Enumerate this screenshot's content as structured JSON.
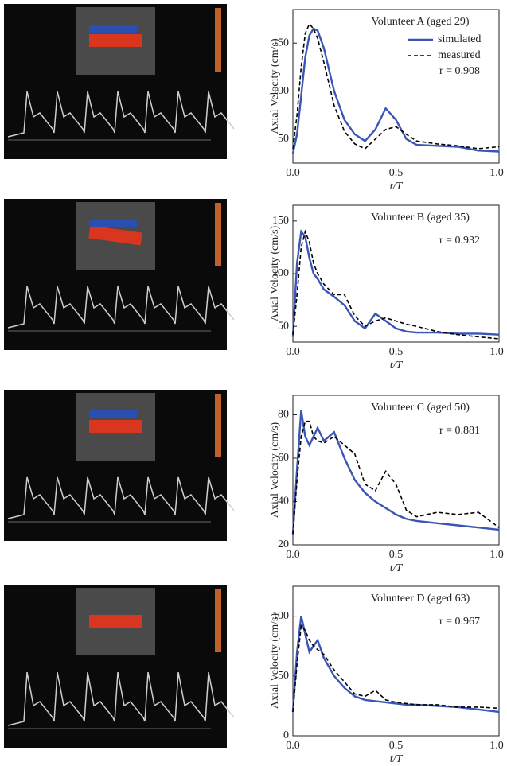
{
  "chart_data": [
    {
      "type": "line",
      "title": "Volunteer A (aged 29)",
      "xlabel": "t/T",
      "ylabel": "Axial Velocity (cm/s)",
      "annotations": [
        "r = 0.908"
      ],
      "legend": true,
      "legend_position": "upper right",
      "grid": false,
      "x": [
        0,
        0.02,
        0.04,
        0.06,
        0.08,
        0.1,
        0.12,
        0.15,
        0.2,
        0.25,
        0.3,
        0.35,
        0.4,
        0.45,
        0.5,
        0.55,
        0.6,
        0.7,
        0.8,
        0.9,
        1.0
      ],
      "xlim": [
        0,
        1
      ],
      "xticks": [
        {
          "value": 0,
          "label": "0.0"
        },
        0.5,
        {
          "value": 1,
          "label": "1.0"
        }
      ],
      "ylim": [
        25,
        185
      ],
      "yticks": [
        50,
        100,
        150
      ],
      "series": [
        {
          "name": "simulated",
          "color": "#3a55b4",
          "style": "solid",
          "values": [
            35,
            55,
            95,
            135,
            158,
            165,
            163,
            145,
            100,
            70,
            55,
            48,
            60,
            82,
            70,
            50,
            44,
            43,
            42,
            38,
            37
          ]
        },
        {
          "name": "measured",
          "color": "#000000",
          "style": "dashed",
          "values": [
            40,
            75,
            125,
            160,
            170,
            165,
            155,
            130,
            85,
            58,
            45,
            40,
            50,
            60,
            63,
            55,
            48,
            45,
            43,
            40,
            42
          ]
        }
      ]
    },
    {
      "type": "line",
      "title": "Volunteer B (aged 35)",
      "xlabel": "t/T",
      "ylabel": "Axial Velocity (cm/s)",
      "annotations": [
        "r = 0.932"
      ],
      "legend": false,
      "grid": false,
      "x": [
        0,
        0.02,
        0.04,
        0.06,
        0.08,
        0.1,
        0.12,
        0.15,
        0.2,
        0.25,
        0.3,
        0.35,
        0.4,
        0.45,
        0.5,
        0.55,
        0.6,
        0.7,
        0.8,
        0.9,
        1.0
      ],
      "xlim": [
        0,
        1
      ],
      "xticks": [
        {
          "value": 0,
          "label": "0.0"
        },
        0.5,
        {
          "value": 1,
          "label": "1.0"
        }
      ],
      "ylim": [
        35,
        165
      ],
      "yticks": [
        50,
        100,
        150
      ],
      "series": [
        {
          "color": "#3a55b4",
          "style": "solid",
          "values": [
            40,
            110,
            140,
            135,
            115,
            100,
            95,
            85,
            78,
            70,
            55,
            48,
            62,
            55,
            48,
            45,
            44,
            44,
            43,
            43,
            42
          ]
        },
        {
          "color": "#000000",
          "style": "dashed",
          "values": [
            42,
            80,
            125,
            140,
            130,
            110,
            100,
            90,
            80,
            80,
            60,
            50,
            55,
            58,
            55,
            52,
            50,
            45,
            42,
            40,
            38
          ]
        }
      ]
    },
    {
      "type": "line",
      "title": "Volunteer C (aged 50)",
      "xlabel": "t/T",
      "ylabel": "Axial Velocity (cm/s)",
      "annotations": [
        "r = 0.881"
      ],
      "legend": false,
      "grid": false,
      "x": [
        0,
        0.02,
        0.04,
        0.06,
        0.08,
        0.1,
        0.12,
        0.15,
        0.2,
        0.25,
        0.3,
        0.35,
        0.4,
        0.45,
        0.5,
        0.55,
        0.6,
        0.7,
        0.8,
        0.9,
        1.0
      ],
      "xlim": [
        0,
        1
      ],
      "xticks": [
        {
          "value": 0,
          "label": "0.0"
        },
        0.5,
        {
          "value": 1,
          "label": "1.0"
        }
      ],
      "ylim": [
        20,
        89
      ],
      "yticks": [
        20,
        40,
        60,
        80
      ],
      "series": [
        {
          "color": "#3a55b4",
          "style": "solid",
          "values": [
            25,
            55,
            82,
            70,
            66,
            70,
            74,
            68,
            72,
            60,
            50,
            44,
            40,
            37,
            34,
            32,
            31,
            30,
            29,
            28,
            27
          ]
        },
        {
          "color": "#000000",
          "style": "dashed",
          "values": [
            25,
            50,
            70,
            77,
            77,
            70,
            68,
            67,
            70,
            66,
            62,
            48,
            45,
            54,
            48,
            36,
            33,
            35,
            34,
            35,
            28
          ]
        }
      ]
    },
    {
      "type": "line",
      "title": "Volunteer D (aged 63)",
      "xlabel": "t/T",
      "ylabel": "Axial Velocity (cm/s)",
      "annotations": [
        "r = 0.967"
      ],
      "legend": false,
      "grid": false,
      "x": [
        0,
        0.02,
        0.04,
        0.06,
        0.08,
        0.1,
        0.12,
        0.15,
        0.2,
        0.25,
        0.3,
        0.35,
        0.4,
        0.45,
        0.5,
        0.55,
        0.6,
        0.7,
        0.8,
        0.9,
        1.0
      ],
      "xlim": [
        0,
        1
      ],
      "xticks": [
        {
          "value": 0,
          "label": "0.0"
        },
        0.5,
        {
          "value": 1,
          "label": "1.0"
        }
      ],
      "ylim": [
        0,
        125
      ],
      "yticks": [
        0,
        50,
        100
      ],
      "series": [
        {
          "color": "#3a55b4",
          "style": "solid",
          "values": [
            20,
            70,
            100,
            85,
            70,
            75,
            80,
            65,
            50,
            40,
            33,
            30,
            29,
            28,
            27,
            26,
            26,
            25,
            24,
            22,
            20
          ]
        },
        {
          "color": "#000000",
          "style": "dashed",
          "values": [
            20,
            60,
            92,
            88,
            80,
            75,
            72,
            68,
            55,
            45,
            35,
            33,
            38,
            30,
            28,
            27,
            26,
            26,
            24,
            24,
            23
          ]
        }
      ]
    }
  ]
}
